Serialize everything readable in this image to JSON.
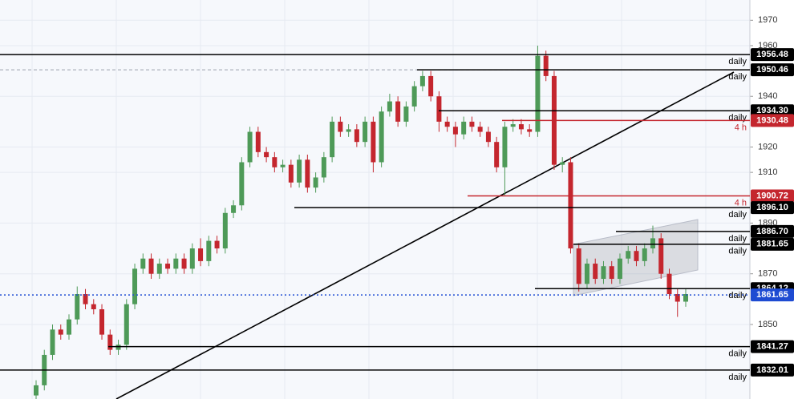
{
  "chart_data": {
    "type": "candlestick",
    "ylim": [
      1820.6,
      1978.0
    ],
    "yticks": [
      1850,
      1870,
      1890,
      1910,
      1920,
      1940,
      1960,
      1970
    ],
    "grid": true,
    "up_color": "#4e9a58",
    "down_color": "#c4262e",
    "open": [
      1822,
      1826,
      1838,
      1848,
      1846,
      1852,
      1862,
      1858,
      1856,
      1846,
      1840,
      1842,
      1858,
      1872,
      1876,
      1870,
      1874,
      1872,
      1876,
      1872,
      1880,
      1875,
      1883,
      1880,
      1894,
      1897,
      1914,
      1926,
      1918,
      1916,
      1912,
      1913,
      1906,
      1915,
      1904,
      1908,
      1916,
      1930,
      1926,
      1927,
      1922,
      1930,
      1914,
      1934,
      1938,
      1930,
      1936,
      1944,
      1948,
      1940,
      1930,
      1928,
      1925,
      1930,
      1928,
      1926,
      1922,
      1912,
      1928,
      1929,
      1927,
      1926,
      1956,
      1948,
      1913,
      1914,
      1880,
      1866,
      1874,
      1868,
      1873,
      1868,
      1876,
      1879,
      1875,
      1880,
      1884,
      1870,
      1862,
      1859
    ],
    "high": [
      1828,
      1840,
      1850,
      1850,
      1854,
      1865,
      1864,
      1860,
      1858,
      1848,
      1844,
      1860,
      1874,
      1878,
      1878,
      1876,
      1876,
      1878,
      1878,
      1882,
      1884,
      1885,
      1885,
      1896,
      1899,
      1916,
      1928,
      1928,
      1920,
      1918,
      1915,
      1915,
      1917,
      1917,
      1910,
      1918,
      1932,
      1932,
      1929,
      1929,
      1932,
      1932,
      1936,
      1941,
      1940,
      1938,
      1946,
      1950,
      1950,
      1942,
      1932,
      1930,
      1932,
      1932,
      1930,
      1928,
      1924,
      1930,
      1931,
      1931,
      1929,
      1960,
      1958,
      1950,
      1916,
      1916,
      1882,
      1876,
      1876,
      1875,
      1875,
      1878,
      1881,
      1881,
      1882,
      1889,
      1886,
      1872,
      1864,
      1864
    ],
    "low": [
      1820,
      1824,
      1836,
      1844,
      1844,
      1850,
      1856,
      1854,
      1844,
      1838,
      1838,
      1840,
      1856,
      1870,
      1868,
      1868,
      1870,
      1870,
      1870,
      1870,
      1873,
      1873,
      1878,
      1878,
      1892,
      1895,
      1912,
      1916,
      1914,
      1910,
      1910,
      1904,
      1904,
      1902,
      1902,
      1906,
      1914,
      1924,
      1924,
      1920,
      1920,
      1910,
      1912,
      1932,
      1928,
      1928,
      1934,
      1942,
      1938,
      1926,
      1926,
      1920,
      1923,
      1926,
      1924,
      1920,
      1910,
      1901,
      1926,
      1925,
      1924,
      1924,
      1946,
      1911,
      1910,
      1878,
      1863,
      1864,
      1866,
      1866,
      1866,
      1866,
      1874,
      1873,
      1873,
      1878,
      1868,
      1860,
      1853,
      1857
    ],
    "close": [
      1826,
      1838,
      1848,
      1846,
      1852,
      1862,
      1858,
      1856,
      1846,
      1840,
      1842,
      1858,
      1872,
      1876,
      1870,
      1874,
      1872,
      1876,
      1872,
      1880,
      1875,
      1883,
      1880,
      1894,
      1897,
      1914,
      1926,
      1918,
      1916,
      1912,
      1913,
      1906,
      1915,
      1904,
      1908,
      1916,
      1930,
      1926,
      1927,
      1922,
      1930,
      1914,
      1934,
      1938,
      1930,
      1936,
      1944,
      1948,
      1940,
      1930,
      1928,
      1925,
      1930,
      1928,
      1926,
      1922,
      1912,
      1928,
      1929,
      1927,
      1926,
      1956,
      1948,
      1913,
      1914,
      1880,
      1866,
      1874,
      1868,
      1873,
      1868,
      1876,
      1879,
      1875,
      1880,
      1884,
      1870,
      1862,
      1859,
      1862
    ],
    "levels": [
      {
        "value": 1956.48,
        "label": "1956.48",
        "tag": "daily",
        "color": "#000000"
      },
      {
        "value": 1950.46,
        "label": "1950.46",
        "tag": "daily",
        "color": "#000000"
      },
      {
        "value": 1934.3,
        "label": "1934.30",
        "tag": "daily",
        "color": "#000000"
      },
      {
        "value": 1930.48,
        "label": "1930.48",
        "tag": "4 h",
        "color": "#c4262e"
      },
      {
        "value": 1900.72,
        "label": "1900.72",
        "tag": "4 h",
        "color": "#c4262e"
      },
      {
        "value": 1896.1,
        "label": "1896.10",
        "tag": "daily",
        "color": "#000000"
      },
      {
        "value": 1886.7,
        "label": "1886.70",
        "tag": "daily",
        "color": "#000000"
      },
      {
        "value": 1881.65,
        "label": "1881.65",
        "tag": "daily",
        "color": "#000000"
      },
      {
        "value": 1864.12,
        "label": "1864.12",
        "tag": "daily",
        "color": "#000000"
      },
      {
        "value": 1841.27,
        "label": "1841.27",
        "tag": "daily",
        "color": "#000000"
      },
      {
        "value": 1832.01,
        "label": "1832.01",
        "tag": "daily",
        "color": "#000000"
      }
    ],
    "last_price": {
      "value": 1861.65,
      "label": "1861.65",
      "color": "#1e4bd2"
    }
  }
}
